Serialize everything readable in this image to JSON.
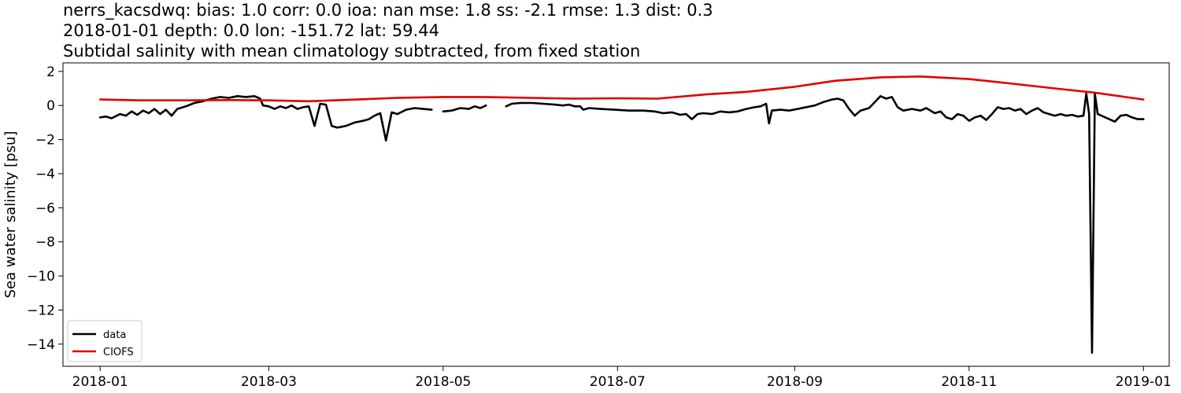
{
  "titles": [
    "nerrs_kacsdwq: bias: 1.0  corr: 0.0  ioa: nan  mse: 1.8  ss: -2.1  rmse: 1.3  dist: 0.3",
    "2018-01-01 depth: 0.0 lon: -151.72 lat: 59.44",
    "Subtidal salinity with mean climatology subtracted, from fixed station"
  ],
  "chart_data": {
    "type": "line",
    "ylabel": "Sea water salinity [psu]",
    "xlabel": "",
    "xlim": [
      "2017-12-19",
      "2019-01-10"
    ],
    "ylim": [
      -15.3,
      2.5
    ],
    "xticks": [
      "2018-01",
      "2018-03",
      "2018-05",
      "2018-07",
      "2018-09",
      "2018-11",
      "2019-01"
    ],
    "yticks": [
      2,
      0,
      -2,
      -4,
      -6,
      -8,
      -10,
      -12,
      -14
    ],
    "grid": false,
    "legend_position": "lower-left",
    "series": [
      {
        "name": "data",
        "color": "#000000",
        "segments": [
          [
            [
              "2018-01-01",
              -0.7
            ],
            [
              "2018-01-03",
              -0.65
            ],
            [
              "2018-01-05",
              -0.75
            ],
            [
              "2018-01-08",
              -0.5
            ],
            [
              "2018-01-10",
              -0.6
            ],
            [
              "2018-01-12",
              -0.35
            ],
            [
              "2018-01-14",
              -0.55
            ],
            [
              "2018-01-16",
              -0.3
            ],
            [
              "2018-01-18",
              -0.45
            ],
            [
              "2018-01-20",
              -0.2
            ],
            [
              "2018-01-22",
              -0.5
            ],
            [
              "2018-01-24",
              -0.25
            ],
            [
              "2018-01-26",
              -0.6
            ],
            [
              "2018-01-28",
              -0.2
            ],
            [
              "2018-01-31",
              -0.05
            ],
            [
              "2018-02-03",
              0.15
            ],
            [
              "2018-02-06",
              0.25
            ],
            [
              "2018-02-09",
              0.4
            ],
            [
              "2018-02-12",
              0.5
            ],
            [
              "2018-02-15",
              0.45
            ],
            [
              "2018-02-18",
              0.55
            ],
            [
              "2018-02-21",
              0.5
            ],
            [
              "2018-02-24",
              0.55
            ],
            [
              "2018-02-26",
              0.4
            ],
            [
              "2018-02-27",
              0.0
            ],
            [
              "2018-03-01",
              -0.05
            ],
            [
              "2018-03-03",
              -0.2
            ],
            [
              "2018-03-05",
              -0.05
            ],
            [
              "2018-03-07",
              -0.15
            ],
            [
              "2018-03-09",
              0.0
            ],
            [
              "2018-03-11",
              -0.2
            ],
            [
              "2018-03-13",
              -0.1
            ],
            [
              "2018-03-15",
              -0.05
            ],
            [
              "2018-03-17",
              -1.2
            ],
            [
              "2018-03-19",
              0.1
            ],
            [
              "2018-03-21",
              0.05
            ],
            [
              "2018-03-23",
              -1.2
            ],
            [
              "2018-03-25",
              -1.3
            ],
            [
              "2018-03-28",
              -1.2
            ],
            [
              "2018-03-31",
              -1.0
            ],
            [
              "2018-04-03",
              -0.9
            ],
            [
              "2018-04-05",
              -0.8
            ],
            [
              "2018-04-07",
              -0.6
            ],
            [
              "2018-04-09",
              -0.45
            ],
            [
              "2018-04-11",
              -2.05
            ],
            [
              "2018-04-13",
              -0.4
            ],
            [
              "2018-04-15",
              -0.5
            ],
            [
              "2018-04-18",
              -0.25
            ],
            [
              "2018-04-21",
              -0.15
            ],
            [
              "2018-04-24",
              -0.2
            ],
            [
              "2018-04-27",
              -0.25
            ]
          ],
          [
            [
              "2018-05-01",
              -0.35
            ],
            [
              "2018-05-04",
              -0.3
            ],
            [
              "2018-05-07",
              -0.15
            ],
            [
              "2018-05-10",
              -0.2
            ],
            [
              "2018-05-12",
              -0.05
            ],
            [
              "2018-05-14",
              -0.15
            ],
            [
              "2018-05-16",
              0.0
            ]
          ],
          [
            [
              "2018-05-23",
              -0.05
            ],
            [
              "2018-05-25",
              0.1
            ],
            [
              "2018-05-28",
              0.15
            ],
            [
              "2018-06-01",
              0.15
            ],
            [
              "2018-06-05",
              0.1
            ],
            [
              "2018-06-09",
              0.05
            ],
            [
              "2018-06-12",
              0.0
            ],
            [
              "2018-06-14",
              0.05
            ],
            [
              "2018-06-16",
              -0.05
            ],
            [
              "2018-06-18",
              -0.05
            ],
            [
              "2018-06-19",
              -0.25
            ],
            [
              "2018-06-21",
              -0.15
            ],
            [
              "2018-06-25",
              -0.2
            ],
            [
              "2018-06-30",
              -0.25
            ],
            [
              "2018-07-05",
              -0.3
            ],
            [
              "2018-07-10",
              -0.3
            ],
            [
              "2018-07-14",
              -0.35
            ],
            [
              "2018-07-17",
              -0.45
            ],
            [
              "2018-07-20",
              -0.4
            ],
            [
              "2018-07-23",
              -0.55
            ],
            [
              "2018-07-25",
              -0.5
            ],
            [
              "2018-07-27",
              -0.8
            ],
            [
              "2018-07-29",
              -0.5
            ],
            [
              "2018-07-31",
              -0.45
            ],
            [
              "2018-08-03",
              -0.5
            ],
            [
              "2018-08-06",
              -0.35
            ],
            [
              "2018-08-09",
              -0.4
            ],
            [
              "2018-08-12",
              -0.35
            ],
            [
              "2018-08-15",
              -0.2
            ],
            [
              "2018-08-18",
              -0.1
            ],
            [
              "2018-08-20",
              -0.05
            ],
            [
              "2018-08-22",
              0.1
            ],
            [
              "2018-08-23",
              -1.05
            ],
            [
              "2018-08-24",
              -0.3
            ],
            [
              "2018-08-27",
              -0.25
            ],
            [
              "2018-08-30",
              -0.3
            ],
            [
              "2018-09-02",
              -0.2
            ],
            [
              "2018-09-05",
              -0.1
            ],
            [
              "2018-09-08",
              0.0
            ],
            [
              "2018-09-11",
              0.2
            ],
            [
              "2018-09-14",
              0.35
            ],
            [
              "2018-09-16",
              0.4
            ],
            [
              "2018-09-18",
              0.3
            ],
            [
              "2018-09-20",
              -0.2
            ],
            [
              "2018-09-22",
              -0.6
            ],
            [
              "2018-09-24",
              -0.3
            ],
            [
              "2018-09-27",
              -0.15
            ],
            [
              "2018-09-29",
              0.2
            ],
            [
              "2018-10-01",
              0.55
            ],
            [
              "2018-10-03",
              0.4
            ],
            [
              "2018-10-05",
              0.5
            ],
            [
              "2018-10-07",
              -0.1
            ],
            [
              "2018-10-09",
              -0.3
            ],
            [
              "2018-10-12",
              -0.2
            ],
            [
              "2018-10-15",
              -0.3
            ],
            [
              "2018-10-17",
              -0.15
            ],
            [
              "2018-10-20",
              -0.45
            ],
            [
              "2018-10-22",
              -0.35
            ],
            [
              "2018-10-24",
              -0.7
            ],
            [
              "2018-10-26",
              -0.8
            ],
            [
              "2018-10-28",
              -0.5
            ],
            [
              "2018-10-30",
              -0.6
            ],
            [
              "2018-11-01",
              -0.9
            ],
            [
              "2018-11-03",
              -0.7
            ],
            [
              "2018-11-05",
              -0.6
            ],
            [
              "2018-11-07",
              -0.85
            ],
            [
              "2018-11-09",
              -0.5
            ],
            [
              "2018-11-11",
              -0.1
            ],
            [
              "2018-11-13",
              -0.2
            ],
            [
              "2018-11-15",
              -0.15
            ],
            [
              "2018-11-17",
              -0.3
            ],
            [
              "2018-11-19",
              -0.2
            ],
            [
              "2018-11-21",
              -0.5
            ],
            [
              "2018-11-23",
              -0.3
            ],
            [
              "2018-11-25",
              -0.15
            ],
            [
              "2018-11-27",
              -0.4
            ],
            [
              "2018-11-29",
              -0.5
            ],
            [
              "2018-12-01",
              -0.6
            ],
            [
              "2018-12-03",
              -0.5
            ],
            [
              "2018-12-05",
              -0.6
            ],
            [
              "2018-12-07",
              -0.55
            ],
            [
              "2018-12-09",
              -0.65
            ],
            [
              "2018-12-11",
              -0.6
            ],
            [
              "2018-12-12",
              0.7
            ],
            [
              "2018-12-13",
              -0.5
            ],
            [
              "2018-12-14",
              -14.5
            ],
            [
              "2018-12-15",
              0.7
            ],
            [
              "2018-12-16",
              -0.5
            ],
            [
              "2018-12-18",
              -0.65
            ],
            [
              "2018-12-20",
              -0.8
            ],
            [
              "2018-12-22",
              -0.95
            ],
            [
              "2018-12-24",
              -0.6
            ],
            [
              "2018-12-26",
              -0.55
            ],
            [
              "2018-12-28",
              -0.7
            ],
            [
              "2018-12-30",
              -0.8
            ],
            [
              "2019-01-01",
              -0.8
            ]
          ]
        ]
      },
      {
        "name": "CIOFS",
        "color": "#e00000",
        "segments": [
          [
            [
              "2018-01-01",
              0.35
            ],
            [
              "2018-01-15",
              0.3
            ],
            [
              "2018-02-01",
              0.3
            ],
            [
              "2018-02-15",
              0.32
            ],
            [
              "2018-03-01",
              0.3
            ],
            [
              "2018-03-15",
              0.25
            ],
            [
              "2018-04-01",
              0.35
            ],
            [
              "2018-04-15",
              0.45
            ],
            [
              "2018-05-01",
              0.5
            ],
            [
              "2018-05-15",
              0.5
            ],
            [
              "2018-06-01",
              0.45
            ],
            [
              "2018-06-15",
              0.4
            ],
            [
              "2018-07-01",
              0.42
            ],
            [
              "2018-07-15",
              0.4
            ],
            [
              "2018-08-01",
              0.65
            ],
            [
              "2018-08-15",
              0.8
            ],
            [
              "2018-09-01",
              1.1
            ],
            [
              "2018-09-15",
              1.45
            ],
            [
              "2018-10-01",
              1.65
            ],
            [
              "2018-10-15",
              1.7
            ],
            [
              "2018-11-01",
              1.55
            ],
            [
              "2018-11-15",
              1.3
            ],
            [
              "2018-12-01",
              1.0
            ],
            [
              "2018-12-15",
              0.75
            ],
            [
              "2019-01-01",
              0.35
            ]
          ]
        ]
      }
    ]
  }
}
